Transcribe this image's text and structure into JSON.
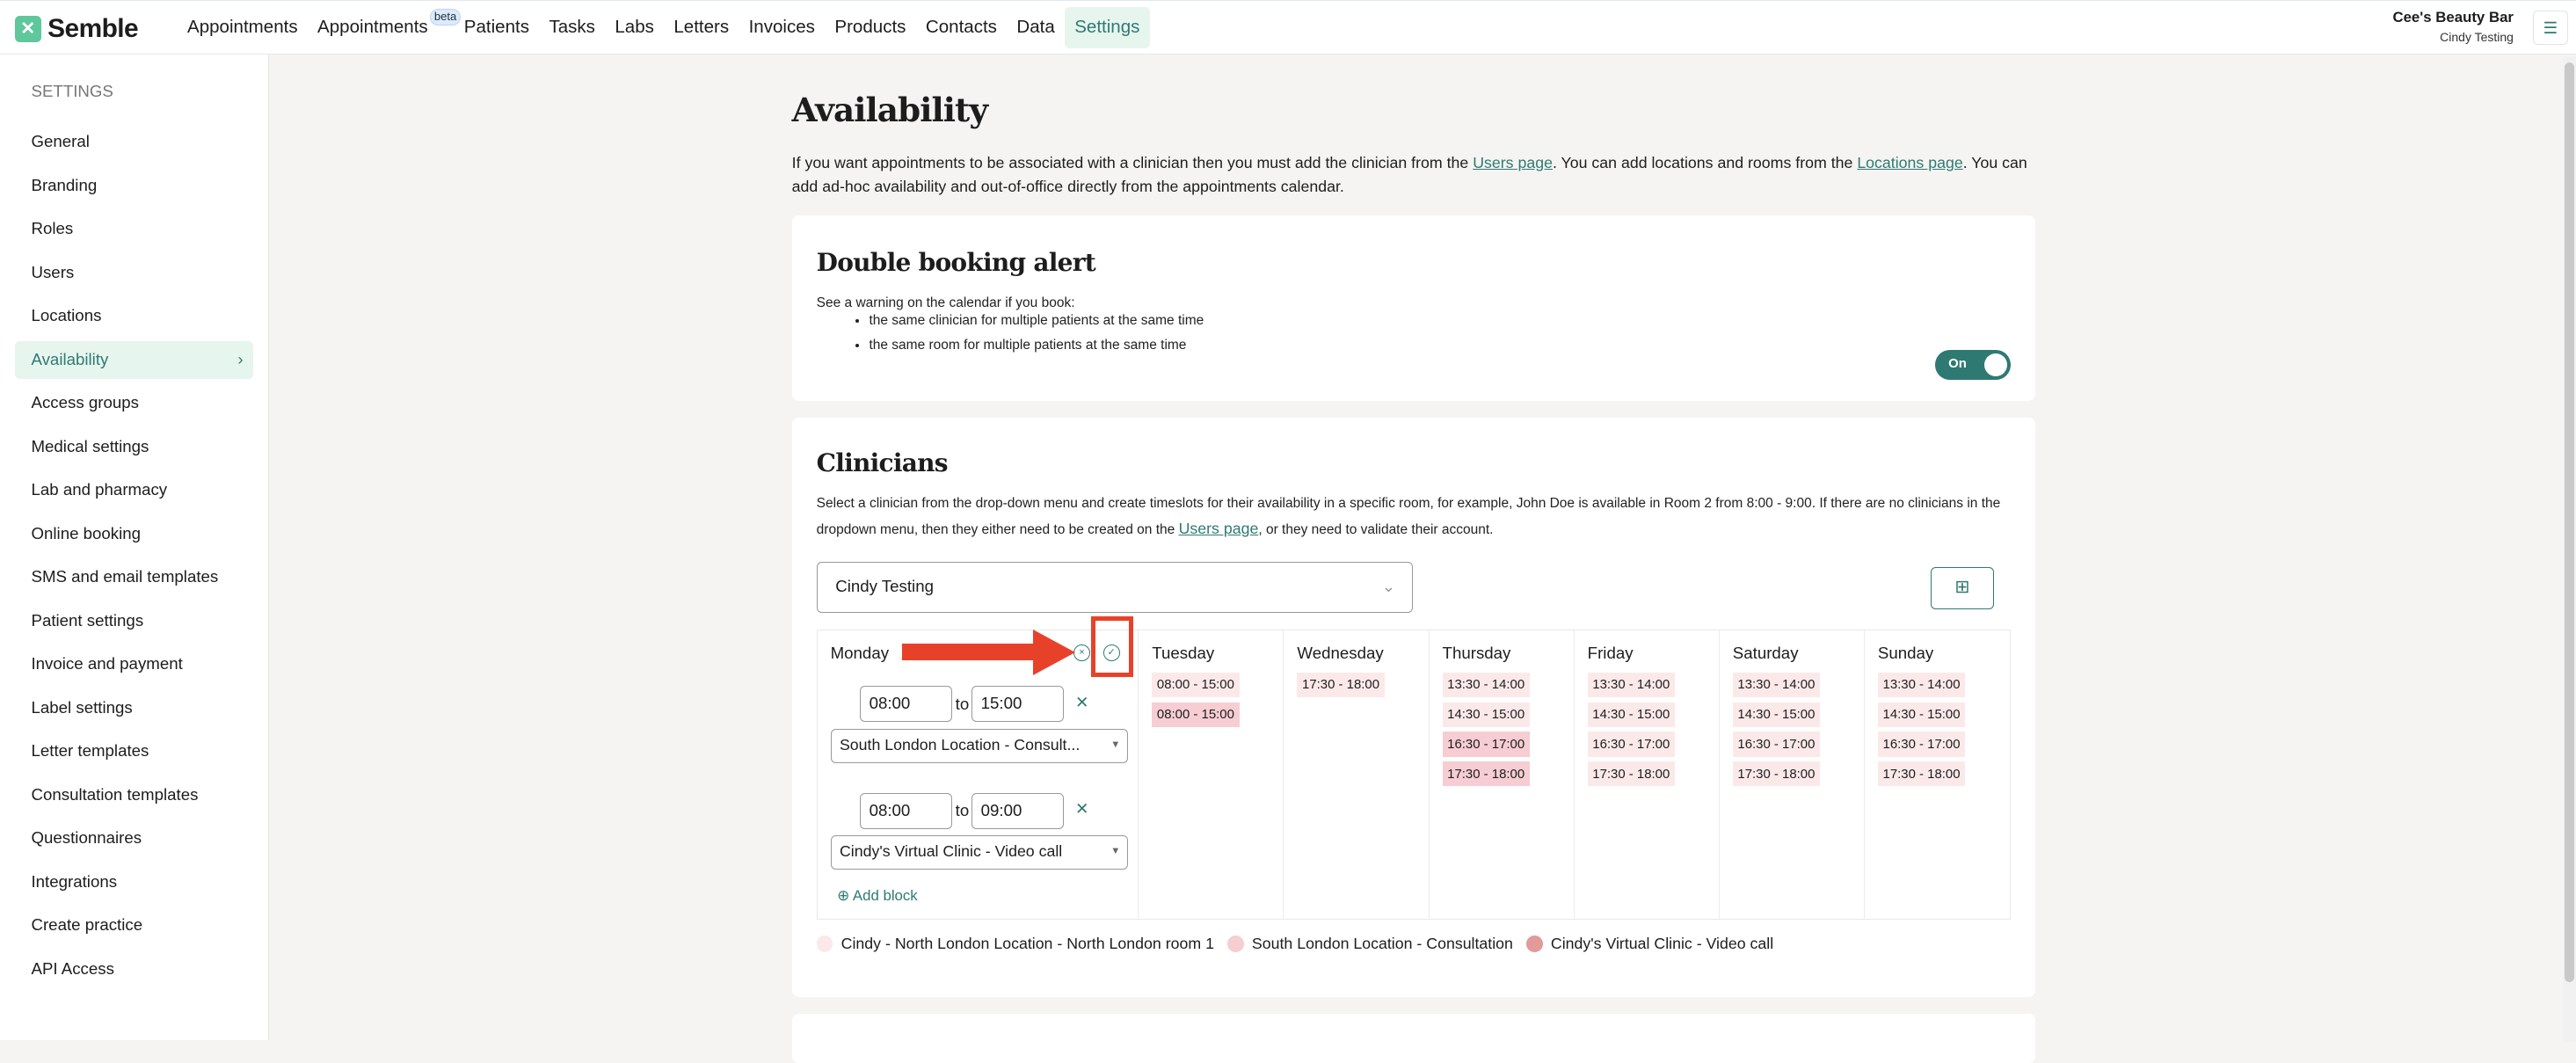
{
  "header": {
    "brand": "Semble",
    "nav": [
      {
        "label": "Appointments"
      },
      {
        "label": "Appointments",
        "badge": "beta"
      },
      {
        "label": "Patients"
      },
      {
        "label": "Tasks"
      },
      {
        "label": "Labs"
      },
      {
        "label": "Letters"
      },
      {
        "label": "Invoices"
      },
      {
        "label": "Products"
      },
      {
        "label": "Contacts"
      },
      {
        "label": "Data"
      },
      {
        "label": "Settings",
        "active": true
      }
    ],
    "practice": "Cee's Beauty Bar",
    "user": "Cindy Testing",
    "menu_icon": "hamburger-icon"
  },
  "sidebar": {
    "heading": "SETTINGS",
    "items": [
      "General",
      "Branding",
      "Roles",
      "Users",
      "Locations",
      "Availability",
      "Access groups",
      "Medical settings",
      "Lab and pharmacy",
      "Online booking",
      "SMS and email templates",
      "Patient settings",
      "Invoice and payment",
      "Label settings",
      "Letter templates",
      "Consultation templates",
      "Questionnaires",
      "Integrations",
      "Create practice",
      "API Access"
    ],
    "active": "Availability"
  },
  "page": {
    "title": "Availability",
    "intro_1": "If you want appointments to be associated with a clinician then you must add the clinician from the ",
    "intro_link1": "Users page",
    "intro_2": ". You can add locations and rooms from the ",
    "intro_link2": "Locations page",
    "intro_3": ". You can add ad-hoc availability and out-of-office directly from the appointments calendar."
  },
  "double_booking": {
    "title": "Double booking alert",
    "desc": "See a warning on the calendar if you book:",
    "bullets": [
      "the same clinician for multiple patients at the same time",
      "the same room for multiple patients at the same time"
    ],
    "toggle_label": "On",
    "enabled": true
  },
  "clinicians": {
    "title": "Clinicians",
    "desc_1": "Select a clinician from the drop-down menu and create timeslots for their availability in a specific room, for example, John Doe is available in Room 2 from 8:00 - 9:00. If there are no clinicians in the dropdown menu, then they either need to be created on the ",
    "desc_link": "Users page",
    "desc_2": ", or they need to validate their account.",
    "selected_clinician": "Cindy Testing",
    "monday": {
      "day": "Monday",
      "blocks": [
        {
          "from": "08:00",
          "to_label": "to",
          "to": "15:00",
          "room": "South London Location - Consult..."
        },
        {
          "from": "08:00",
          "to_label": "to",
          "to": "09:00",
          "room": "Cindy's Virtual Clinic - Video call"
        }
      ],
      "add_block": "Add block"
    },
    "days": [
      {
        "day": "Tuesday",
        "slots": [
          {
            "time": "08:00 - 15:00",
            "legend": 0
          },
          {
            "time": "08:00 - 15:00",
            "legend": 1
          }
        ]
      },
      {
        "day": "Wednesday",
        "slots": [
          {
            "time": "17:30 - 18:00",
            "legend": 0
          }
        ]
      },
      {
        "day": "Thursday",
        "slots": [
          {
            "time": "13:30 - 14:00",
            "legend": 0
          },
          {
            "time": "14:30 - 15:00",
            "legend": 0
          },
          {
            "time": "16:30 - 17:00",
            "legend": 1
          },
          {
            "time": "17:30 - 18:00",
            "legend": 1
          }
        ]
      },
      {
        "day": "Friday",
        "slots": [
          {
            "time": "13:30 - 14:00",
            "legend": 0
          },
          {
            "time": "14:30 - 15:00",
            "legend": 0
          },
          {
            "time": "16:30 - 17:00",
            "legend": 0
          },
          {
            "time": "17:30 - 18:00",
            "legend": 0
          }
        ]
      },
      {
        "day": "Saturday",
        "slots": [
          {
            "time": "13:30 - 14:00",
            "legend": 0
          },
          {
            "time": "14:30 - 15:00",
            "legend": 0
          },
          {
            "time": "16:30 - 17:00",
            "legend": 0
          },
          {
            "time": "17:30 - 18:00",
            "legend": 0
          }
        ]
      },
      {
        "day": "Sunday",
        "slots": [
          {
            "time": "13:30 - 14:00",
            "legend": 0
          },
          {
            "time": "14:30 - 15:00",
            "legend": 0
          },
          {
            "time": "16:30 - 17:00",
            "legend": 0
          },
          {
            "time": "17:30 - 18:00",
            "legend": 0
          }
        ]
      }
    ],
    "legend": [
      {
        "label": "Cindy - North London Location - North London room 1",
        "color": "#fbe9ea"
      },
      {
        "label": "South London Location - Consultation",
        "color": "#f6cdd3"
      },
      {
        "label": "Cindy's Virtual Clinic - Video call",
        "color": "#e39a9a"
      }
    ]
  },
  "colors": {
    "accent": "#2e7a72",
    "annotation": "#e8412a"
  }
}
